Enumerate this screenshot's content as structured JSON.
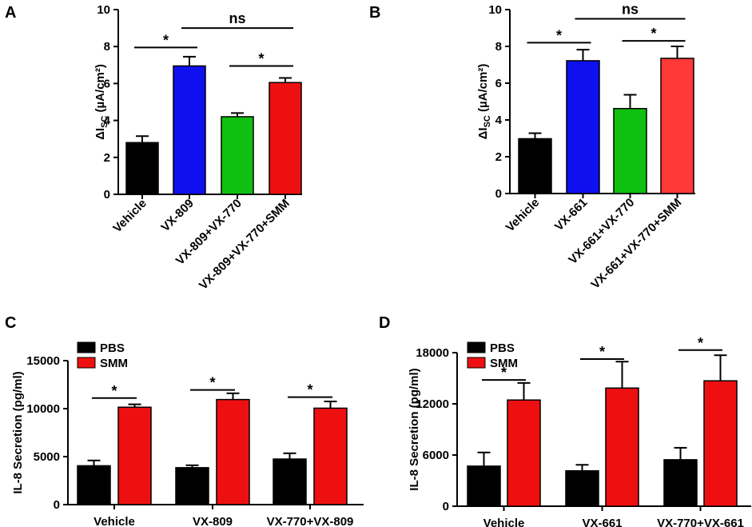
{
  "chart_data": [
    {
      "panel": "A",
      "type": "bar",
      "ylabel": "ΔI",
      "ylabel_sub": "SC",
      "ylabel_unit": " (µA/cm²)",
      "ylim": [
        0,
        10
      ],
      "yticks": [
        "0",
        "2",
        "4",
        "6",
        "8",
        "10"
      ],
      "categories": [
        "Vehicle",
        "VX-809",
        "VX-809+VX-770",
        "VX-809+VX-770+SMM"
      ],
      "values": [
        2.8,
        6.95,
        4.2,
        6.05
      ],
      "errors": [
        0.35,
        0.5,
        0.2,
        0.25
      ],
      "colors": [
        "#000000",
        "#1010ee",
        "#10c010",
        "#ee1010"
      ],
      "annotations": [
        {
          "from": 0,
          "to": 1,
          "level": 7.95,
          "text": "*"
        },
        {
          "from": 1,
          "to": 3,
          "level": 9.0,
          "text": "ns"
        },
        {
          "from": 2,
          "to": 3,
          "level": 6.95,
          "text": "*"
        }
      ]
    },
    {
      "panel": "B",
      "type": "bar",
      "ylabel": "ΔI",
      "ylabel_sub": "SC",
      "ylabel_unit": " (µA/cm²)",
      "ylim": [
        0,
        10
      ],
      "yticks": [
        "0",
        "2",
        "4",
        "6",
        "8",
        "10"
      ],
      "categories": [
        "Vehicle",
        "VX-661",
        "VX-661+VX-770",
        "VX-661+VX-770+SMM"
      ],
      "values": [
        2.98,
        7.22,
        4.62,
        7.35
      ],
      "errors": [
        0.3,
        0.6,
        0.75,
        0.65
      ],
      "colors": [
        "#000000",
        "#1010ee",
        "#10c010",
        "#ff3838"
      ],
      "annotations": [
        {
          "from": 0,
          "to": 1,
          "level": 8.2,
          "text": "*"
        },
        {
          "from": 1,
          "to": 3,
          "level": 9.5,
          "text": "ns"
        },
        {
          "from": 2,
          "to": 3,
          "level": 8.3,
          "text": "*"
        }
      ]
    },
    {
      "panel": "C",
      "type": "bar",
      "ylabel": "IL-8 Secretion (pg/ml)",
      "ylim": [
        0,
        15000
      ],
      "yticks": [
        "0",
        "5000",
        "10000",
        "15000"
      ],
      "categories": [
        "Vehicle",
        "VX-809",
        "VX-770+VX-809"
      ],
      "series": [
        {
          "name": "PBS",
          "color": "#000000",
          "values": [
            4050,
            3850,
            4750
          ],
          "errors": [
            550,
            250,
            600
          ]
        },
        {
          "name": "SMM",
          "color": "#ee1010",
          "values": [
            10150,
            10950,
            10050
          ],
          "errors": [
            300,
            650,
            700
          ]
        }
      ],
      "annotations": [
        {
          "group": 0,
          "level": 11100,
          "text": "*"
        },
        {
          "group": 1,
          "level": 11950,
          "text": "*"
        },
        {
          "group": 2,
          "level": 11200,
          "text": "*"
        }
      ]
    },
    {
      "panel": "D",
      "type": "bar",
      "ylabel": "IL-8 Secretion (pg/ml)",
      "ylim": [
        0,
        18000
      ],
      "yticks": [
        "0",
        "6000",
        "12000",
        "18000"
      ],
      "categories": [
        "Vehicle",
        "VX-661",
        "VX-770+VX-661"
      ],
      "series": [
        {
          "name": "PBS",
          "color": "#000000",
          "values": [
            4700,
            4150,
            5450
          ],
          "errors": [
            1600,
            700,
            1400
          ]
        },
        {
          "name": "SMM",
          "color": "#ee1010",
          "values": [
            12450,
            13850,
            14700
          ],
          "errors": [
            2000,
            3100,
            3000
          ]
        }
      ],
      "annotations": [
        {
          "group": 0,
          "level": 14800,
          "text": "*"
        },
        {
          "group": 1,
          "level": 17250,
          "text": "*"
        },
        {
          "group": 2,
          "level": 18300,
          "text": "*"
        }
      ]
    }
  ]
}
